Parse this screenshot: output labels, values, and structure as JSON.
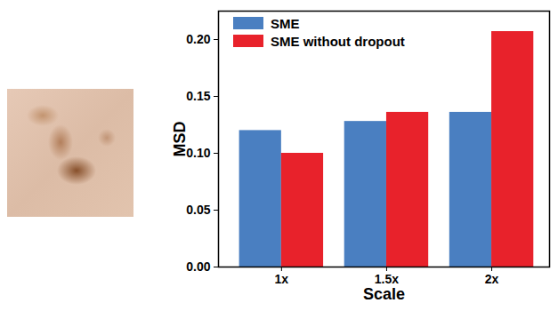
{
  "chart_data": {
    "type": "bar",
    "categories": [
      "1x",
      "1.5x",
      "2x"
    ],
    "series": [
      {
        "name": "SME",
        "color": "#4a7fc1",
        "values": [
          0.12,
          0.128,
          0.136
        ]
      },
      {
        "name": "SME without dropout",
        "color": "#e8222b",
        "values": [
          0.1,
          0.136,
          0.207
        ]
      }
    ],
    "x_label": "Scale",
    "y_label": "MSD",
    "ylim": [
      0,
      0.225
    ],
    "yticks": [
      {
        "value": 0,
        "label": "0.00"
      },
      {
        "value": 0.05,
        "label": "0.05"
      },
      {
        "value": 0.1,
        "label": "0.10"
      },
      {
        "value": 0.15,
        "label": "0.15"
      },
      {
        "value": 0.2,
        "label": "0.20"
      }
    ],
    "legend": "upper left"
  }
}
